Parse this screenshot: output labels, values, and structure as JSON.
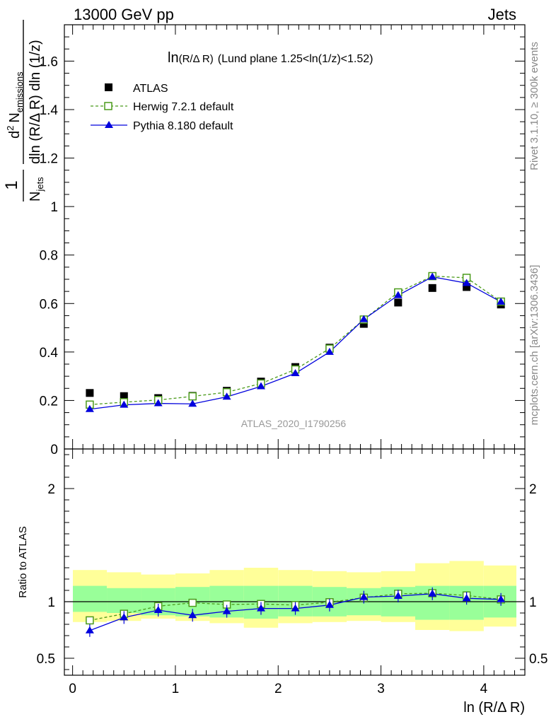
{
  "header": {
    "left": "13000 GeV pp",
    "right": "Jets"
  },
  "side_text": {
    "rivet": "Rivet 3.1.10, ≥ 300k events",
    "mcplots": "mcplots.cern.ch [arXiv:1306.3436]"
  },
  "watermark": "ATLAS_2020_I1790256",
  "plot_title": {
    "prefix": "ln",
    "small": "(R/Δ R)",
    "rest": "(Lund plane 1.25<ln(1/z)<1.52)"
  },
  "y_label": {
    "frac_num": "1",
    "frac_den_main": "N",
    "frac_den_sub": "jets",
    "d2_num_main": "d",
    "d2_num_sup": "2",
    "d2_num_var": "N",
    "d2_num_sub": "emissions",
    "d2_den": "dln (R/Δ R) dln (1/z)"
  },
  "x_label": "ln (R/Δ R)",
  "ratio_label": "Ratio to ATLAS",
  "colors": {
    "atlas": "#000000",
    "herwig": "#4a9a1a",
    "pythia": "#0000dd",
    "band_outer": "#ffff99",
    "band_inner": "#99ff99"
  },
  "chart_data": {
    "type": "scatter",
    "x": [
      0.167,
      0.5,
      0.833,
      1.167,
      1.5,
      1.833,
      2.167,
      2.5,
      2.833,
      3.167,
      3.5,
      3.833,
      4.167
    ],
    "series": [
      {
        "name": "ATLAS",
        "values": [
          0.231,
          0.218,
          0.21,
          0.219,
          0.24,
          0.278,
          0.338,
          0.418,
          0.516,
          0.604,
          0.664,
          0.668,
          0.596
        ]
      },
      {
        "name": "Herwig 7.2.1 default",
        "values": [
          0.183,
          0.193,
          0.202,
          0.217,
          0.234,
          0.27,
          0.328,
          0.414,
          0.534,
          0.646,
          0.713,
          0.706,
          0.608
        ]
      },
      {
        "name": "Pythia 8.180 default",
        "values": [
          0.164,
          0.182,
          0.188,
          0.186,
          0.215,
          0.258,
          0.312,
          0.4,
          0.535,
          0.634,
          0.71,
          0.684,
          0.607
        ]
      }
    ],
    "ratio": {
      "herwig": [
        0.835,
        0.893,
        0.96,
        0.99,
        0.975,
        0.98,
        0.97,
        0.995,
        1.035,
        1.07,
        1.075,
        1.055,
        1.02
      ],
      "pythia": [
        0.745,
        0.86,
        0.925,
        0.88,
        0.915,
        0.94,
        0.94,
        0.97,
        1.04,
        1.05,
        1.07,
        1.03,
        1.02
      ],
      "band_inner": [
        [
          0.91,
          1.14
        ],
        [
          0.9,
          1.12
        ],
        [
          0.88,
          1.12
        ],
        [
          0.87,
          1.13
        ],
        [
          0.86,
          1.14
        ],
        [
          0.85,
          1.14
        ],
        [
          0.87,
          1.14
        ],
        [
          0.87,
          1.13
        ],
        [
          0.88,
          1.12
        ],
        [
          0.87,
          1.13
        ],
        [
          0.84,
          1.14
        ],
        [
          0.84,
          1.14
        ],
        [
          0.86,
          1.14
        ]
      ],
      "band_outer": [
        [
          0.82,
          1.28
        ],
        [
          0.83,
          1.26
        ],
        [
          0.85,
          1.24
        ],
        [
          0.83,
          1.25
        ],
        [
          0.81,
          1.28
        ],
        [
          0.77,
          1.3
        ],
        [
          0.81,
          1.28
        ],
        [
          0.82,
          1.27
        ],
        [
          0.83,
          1.26
        ],
        [
          0.82,
          1.27
        ],
        [
          0.75,
          1.34
        ],
        [
          0.74,
          1.36
        ],
        [
          0.78,
          1.32
        ]
      ]
    },
    "xlim": [
      -0.08,
      4.4
    ],
    "ylim": [
      0,
      1.75
    ],
    "ratio_ylim": [
      0.35,
      2.35
    ],
    "x_ticks": [
      "0",
      "1",
      "2",
      "3",
      "4"
    ],
    "y_ticks": [
      "0",
      "0.2",
      "0.4",
      "0.6",
      "0.8",
      "1",
      "1.2",
      "1.4",
      "1.6"
    ],
    "ratio_ticks": [
      "0.5",
      "1",
      "2"
    ],
    "legend": [
      "ATLAS",
      "Herwig 7.2.1 default",
      "Pythia 8.180 default"
    ]
  }
}
